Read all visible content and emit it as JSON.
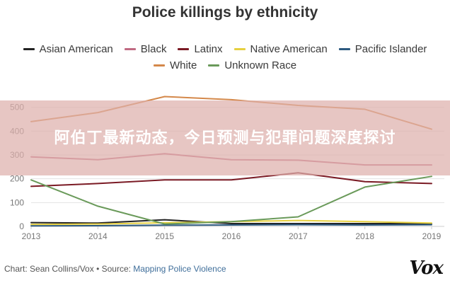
{
  "chart_data": {
    "type": "line",
    "title": "Police killings by ethnicity",
    "x": [
      2013,
      2014,
      2015,
      2016,
      2017,
      2018,
      2019
    ],
    "x_tick_labels": [
      "2013",
      "2014",
      "2015",
      "2016",
      "2017",
      "2018",
      "2019"
    ],
    "ylim": [
      0,
      600
    ],
    "y_ticks": [
      0,
      100,
      200,
      300,
      400,
      500
    ],
    "grid": true,
    "legend_position": "top",
    "series": [
      {
        "name": "Asian American",
        "color": "#222222",
        "values": [
          16,
          14,
          28,
          12,
          12,
          12,
          12
        ]
      },
      {
        "name": "Black",
        "color": "#c06a82",
        "values": [
          292,
          280,
          305,
          280,
          278,
          258,
          258
        ]
      },
      {
        "name": "Latinx",
        "color": "#7a1a24",
        "values": [
          168,
          180,
          195,
          195,
          225,
          188,
          180
        ]
      },
      {
        "name": "Native American",
        "color": "#e6d040",
        "values": [
          8,
          10,
          15,
          20,
          25,
          20,
          14
        ]
      },
      {
        "name": "Pacific Islander",
        "color": "#2d5a80",
        "values": [
          2,
          3,
          5,
          6,
          7,
          6,
          7
        ]
      },
      {
        "name": "White",
        "color": "#d4884a",
        "values": [
          440,
          478,
          545,
          532,
          508,
          492,
          408
        ]
      },
      {
        "name": "Unknown Race",
        "color": "#6a9a5a",
        "values": [
          195,
          85,
          10,
          20,
          40,
          165,
          210
        ]
      }
    ]
  },
  "legend_rows": [
    [
      "Asian American",
      "Black",
      "Latinx",
      "Native American",
      "Pacific Islander"
    ],
    [
      "White",
      "Unknown Race"
    ]
  ],
  "overlay": {
    "text": "阿伯丁最新动态，今日预测与犯罪问题深度探讨"
  },
  "footer": {
    "credit_prefix": "Chart: Sean Collins/Vox • Source: ",
    "credit_link": "Mapping Police Violence",
    "logo_text": "Vox"
  }
}
